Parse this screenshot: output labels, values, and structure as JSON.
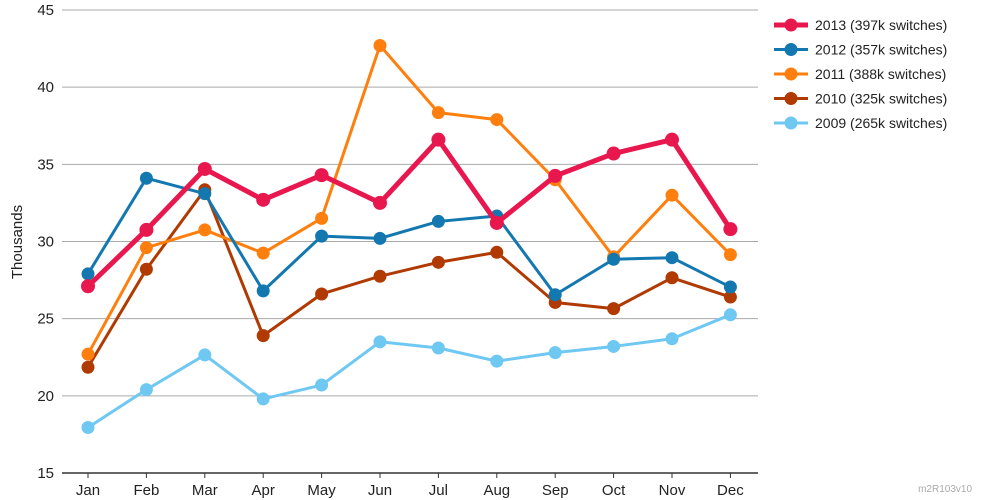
{
  "chart_data": {
    "type": "line",
    "ylabel": "Thousands",
    "xlabel": "",
    "ylim": [
      15,
      45
    ],
    "yticks": [
      15,
      20,
      25,
      30,
      35,
      40,
      45
    ],
    "grid": true,
    "legend_position": "right",
    "categories": [
      "Jan",
      "Feb",
      "Mar",
      "Apr",
      "May",
      "Jun",
      "Jul",
      "Aug",
      "Sep",
      "Oct",
      "Nov",
      "Dec"
    ],
    "series": [
      {
        "name": "2013 (397k switches)",
        "color": "#e8174e",
        "emphasis": true,
        "values": [
          27.1,
          30.75,
          34.7,
          32.7,
          34.3,
          32.5,
          36.6,
          31.2,
          34.25,
          35.7,
          36.6,
          30.8
        ]
      },
      {
        "name": "2012 (357k switches)",
        "color": "#1478b0",
        "values": [
          27.9,
          34.1,
          33.1,
          26.8,
          30.35,
          30.2,
          31.3,
          31.65,
          26.55,
          28.85,
          28.95,
          27.05
        ]
      },
      {
        "name": "2011 (388k switches)",
        "color": "#ff7f0e",
        "values": [
          22.7,
          29.6,
          30.75,
          29.25,
          31.5,
          42.7,
          38.35,
          37.9,
          34.0,
          29.0,
          33.0,
          29.15
        ]
      },
      {
        "name": "2010 (325k switches)",
        "color": "#b03a02",
        "values": [
          21.85,
          28.2,
          33.35,
          23.9,
          26.6,
          27.75,
          28.65,
          29.3,
          26.05,
          25.65,
          27.65,
          26.4
        ]
      },
      {
        "name": "2009 (265k switches)",
        "color": "#6ec8f2",
        "values": [
          17.95,
          20.4,
          22.65,
          19.8,
          20.7,
          23.5,
          23.1,
          22.25,
          22.8,
          23.2,
          23.7,
          25.25
        ]
      }
    ]
  },
  "watermark": "m2R103v10"
}
